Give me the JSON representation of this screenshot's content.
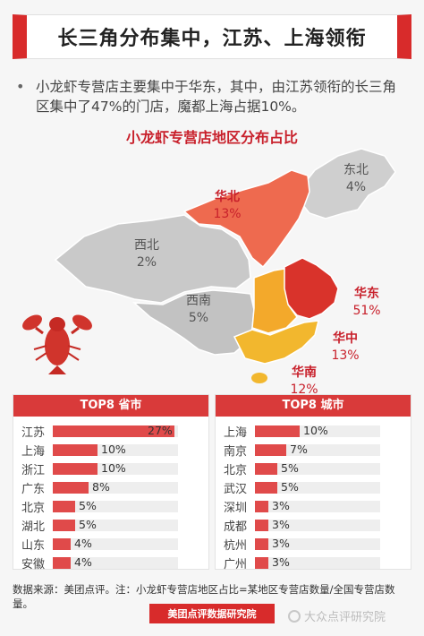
{
  "header": {
    "title": "长三角分布集中，江苏、上海领衔"
  },
  "bullet": {
    "dot": "•",
    "text": "小龙虾专营店主要集中于华东，其中，由江苏领衔的长三角区集中了47%的门店，魔都上海占据10%。"
  },
  "chart_data": [
    {
      "type": "choropleth",
      "title": "小龙虾专营店地区分布占比",
      "regions": [
        {
          "name": "东北",
          "value": 4,
          "label": "4%",
          "color": "#cfcfcf"
        },
        {
          "name": "华北",
          "value": 13,
          "label": "13%",
          "color": "#ee6a4f"
        },
        {
          "name": "西北",
          "value": 2,
          "label": "2%",
          "color": "#c9c9c9"
        },
        {
          "name": "西南",
          "value": 5,
          "label": "5%",
          "color": "#c2c2c2"
        },
        {
          "name": "华东",
          "value": 51,
          "label": "51%",
          "color": "#d9332b"
        },
        {
          "name": "华中",
          "value": 13,
          "label": "13%",
          "color": "#f3a92b"
        },
        {
          "name": "华南",
          "value": 12,
          "label": "12%",
          "color": "#f2b72e"
        }
      ]
    },
    {
      "type": "bar",
      "title": "TOP8 省市",
      "categories": [
        "江苏",
        "上海",
        "浙江",
        "广东",
        "北京",
        "湖北",
        "山东",
        "安徽"
      ],
      "values": [
        27,
        10,
        10,
        8,
        5,
        5,
        4,
        4
      ],
      "labels": [
        "27%",
        "10%",
        "10%",
        "8%",
        "5%",
        "5%",
        "4%",
        "4%"
      ],
      "xlim": [
        0,
        27
      ]
    },
    {
      "type": "bar",
      "title": "TOP8 城市",
      "categories": [
        "上海",
        "南京",
        "北京",
        "武汉",
        "深圳",
        "成都",
        "杭州",
        "广州"
      ],
      "values": [
        10,
        7,
        5,
        5,
        3,
        3,
        3,
        3
      ],
      "labels": [
        "10%",
        "7%",
        "5%",
        "5%",
        "3%",
        "3%",
        "3%",
        "3%"
      ],
      "xlim": [
        0,
        27
      ]
    }
  ],
  "footnote": "数据来源：美团点评。注：小龙虾专营店地区占比=某地区专营店数量/全国专营店数量。",
  "footer_badge": "美团点评数据研究院",
  "watermark": "大众点评研究院"
}
